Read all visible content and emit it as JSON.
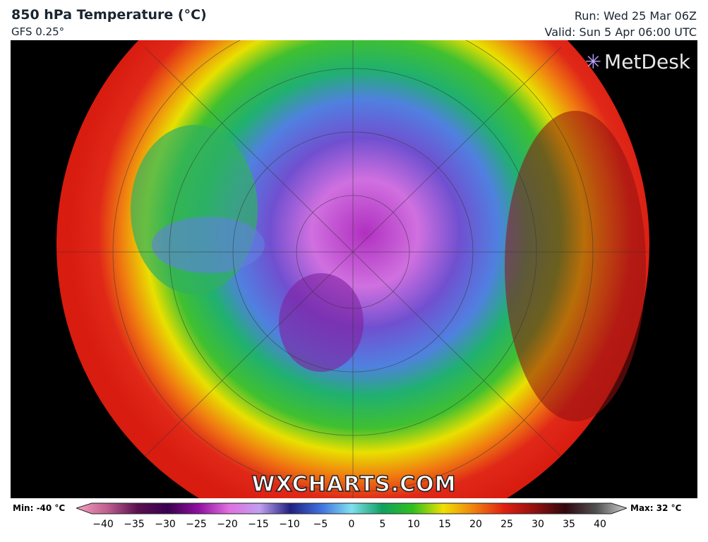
{
  "header": {
    "title": "850 hPa Temperature (°C)",
    "model": "GFS 0.25°",
    "run": "Run: Wed 25 Mar 06Z",
    "valid": "Valid: Sun 5 Apr 06:00 UTC"
  },
  "logo": "MetDesk",
  "watermark": "WXCHARTS.COM",
  "legend": {
    "min_label": "Min: -40 °C",
    "max_label": "Max: 32 °C",
    "ticks": [
      "−40",
      "−35",
      "−30",
      "−25",
      "−20",
      "−15",
      "−10",
      "−5",
      "0",
      "5",
      "10",
      "15",
      "20",
      "25",
      "30",
      "35",
      "40"
    ],
    "colors": [
      "#f5a0c0",
      "#c06090",
      "#5a1050",
      "#3a0050",
      "#9010a0",
      "#e070e0",
      "#c0a0f0",
      "#202080",
      "#4070e0",
      "#80e0f0",
      "#10a060",
      "#30c020",
      "#f0e000",
      "#f08010",
      "#e02010",
      "#901010",
      "#300810",
      "#505050",
      "#d0d0d0"
    ]
  }
}
